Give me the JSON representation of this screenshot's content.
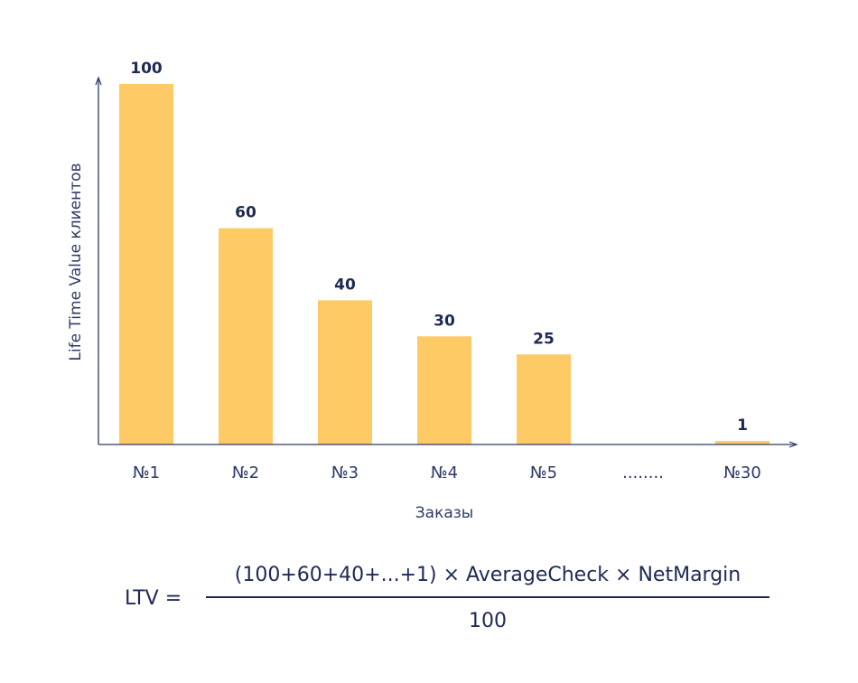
{
  "chart_data": {
    "type": "bar",
    "categories": [
      "№1",
      "№2",
      "№3",
      "№4",
      "№5",
      "........",
      "№30"
    ],
    "values": [
      100,
      60,
      40,
      30,
      25,
      null,
      1
    ],
    "value_labels": [
      "100",
      "60",
      "40",
      "30",
      "25",
      "",
      "1"
    ],
    "title": "",
    "xlabel": "Заказы",
    "ylabel": "Life Time Value клиентов",
    "ylim": [
      0,
      100
    ],
    "grid": false,
    "bar_color": "#fdca65",
    "axis_color": "#2e3a66"
  },
  "formula": {
    "lhs": "LTV =",
    "numerator": "(100+60+40+...+1) × AverageCheck × NetMargin",
    "denominator": "100"
  }
}
